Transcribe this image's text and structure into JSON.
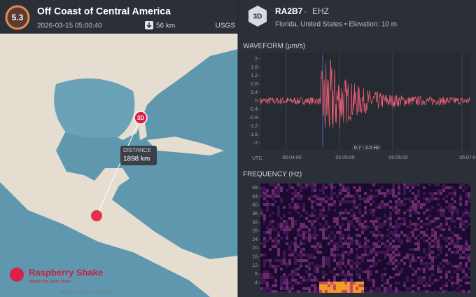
{
  "event": {
    "magnitude": "5.3",
    "title": "Off Coast of Central America",
    "datetime": "2026-03-15 05:00:40",
    "depth": "56 km",
    "source": "USGS"
  },
  "map": {
    "station_badge": "3D",
    "distance_label": "DISTANCE",
    "distance": "1898 km",
    "logo_name": "Raspberry Shake",
    "logo_tagline": "Watch the Earth Move",
    "attribution": "Map © | Data © contributors"
  },
  "station": {
    "badge": "3D",
    "name": "RA2B7",
    "separator": "-",
    "channel": "EHZ",
    "location": "Florida, United States • Elevation: 10 m"
  },
  "waveform": {
    "title": "WAVEFORM (μm/s)",
    "yticks": [
      2,
      1.6,
      1.2,
      0.8,
      0.4,
      0,
      -0.4,
      -0.8,
      -1.2,
      -1.6,
      -2
    ],
    "ylim": [
      -2.2,
      2.2
    ],
    "xticks": [
      "05:04:00",
      "05:05:00",
      "05:06:00",
      "05:07:0"
    ],
    "timezone": "UTC",
    "filter": "0.7 - 2.0 Hz"
  },
  "frequency": {
    "title": "FREQUENCY (Hz)",
    "yticks": [
      4,
      8,
      12,
      16,
      20,
      24,
      28,
      32,
      36,
      40,
      44,
      48
    ],
    "ylim": [
      0,
      50
    ]
  }
}
